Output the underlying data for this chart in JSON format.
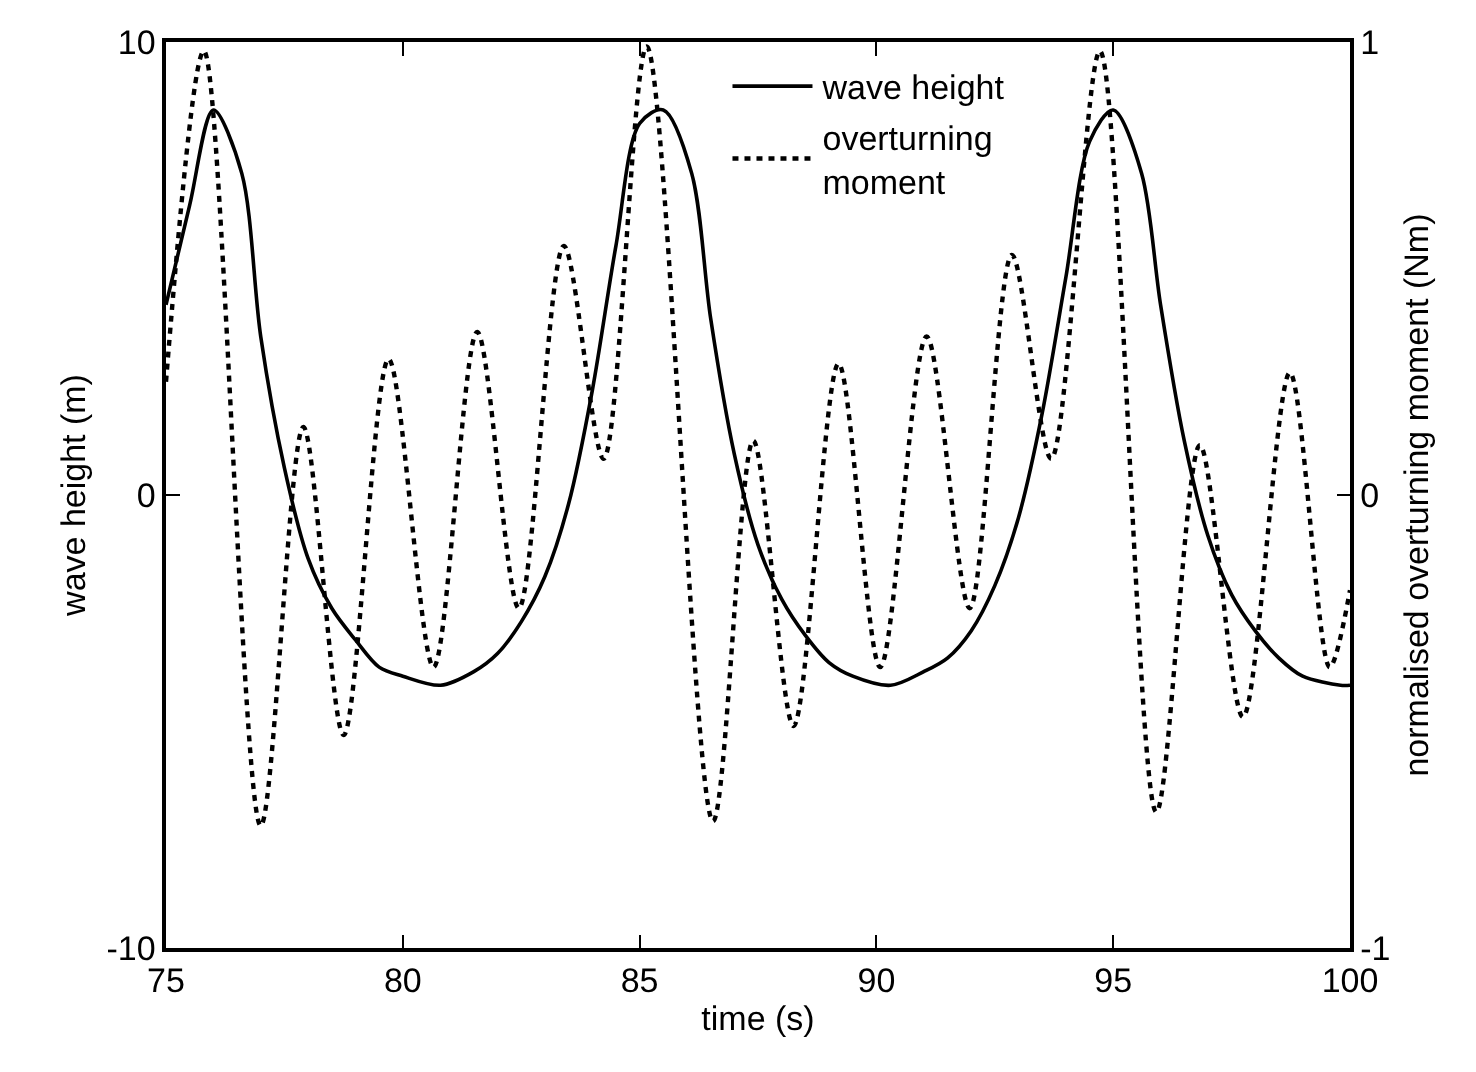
{
  "chart_data": {
    "type": "line",
    "xlabel": "time (s)",
    "ylabel": "wave height (m)",
    "y2label": "normalised overturning moment (Nm)",
    "xlim": [
      75,
      100
    ],
    "xticks": [
      75,
      80,
      85,
      90,
      95,
      100
    ],
    "ylim": [
      -10,
      10
    ],
    "yticks": [
      -10,
      0,
      10
    ],
    "y2lim": [
      -1,
      1
    ],
    "y2ticks": [
      -1,
      0,
      1
    ],
    "legend": "top right",
    "marker": "none",
    "series": [
      {
        "name": "wave height",
        "color": "#000000",
        "line_style": "solid",
        "x": [
          75,
          75.5,
          76,
          76.6,
          77,
          77.5,
          78,
          78.5,
          79,
          79.5,
          80,
          80.8,
          81.5,
          82,
          82.5,
          83,
          83.5,
          84,
          84.5,
          85,
          85.5,
          86.1,
          86.5,
          87,
          87.5,
          88,
          88.5,
          89,
          89.5,
          90.3,
          91,
          91.5,
          92,
          92.5,
          93,
          93.5,
          94,
          94.5,
          95,
          95.6,
          96,
          96.5,
          97,
          97.5,
          98,
          98.5,
          99,
          99.8,
          100
        ],
        "values": [
          4.2,
          6.4,
          8.5,
          7.1,
          3.5,
          0.6,
          -1.4,
          -2.5,
          -3.2,
          -3.8,
          -4.0,
          -4.2,
          -3.9,
          -3.5,
          -2.8,
          -1.8,
          -0.2,
          2.3,
          5.5,
          8.2,
          8.5,
          7.1,
          3.9,
          0.9,
          -1.1,
          -2.3,
          -3.1,
          -3.7,
          -4.0,
          -4.2,
          -3.9,
          -3.6,
          -3.0,
          -2.0,
          -0.5,
          1.8,
          4.8,
          7.8,
          8.5,
          7.1,
          4.2,
          1.2,
          -0.9,
          -2.2,
          -3.0,
          -3.6,
          -4.0,
          -4.2,
          -4.2
        ]
      },
      {
        "name": "overturning moment",
        "color": "#000000",
        "line_style": "dotted",
        "axis": "y2",
        "x": [
          75,
          75.8,
          77.0,
          77.9,
          78.75,
          79.7,
          80.65,
          81.57,
          82.45,
          83.4,
          84.24,
          85.15,
          86.55,
          87.4,
          88.25,
          89.2,
          90.08,
          91.06,
          91.97,
          92.86,
          93.69,
          94.72,
          95.91,
          96.83,
          97.74,
          98.73,
          99.57,
          100
        ],
        "values": [
          0.25,
          0.98,
          -0.73,
          0.15,
          -0.53,
          0.3,
          -0.38,
          0.36,
          -0.25,
          0.55,
          0.08,
          0.99,
          -0.72,
          0.12,
          -0.51,
          0.29,
          -0.38,
          0.35,
          -0.25,
          0.53,
          0.08,
          0.98,
          -0.7,
          0.11,
          -0.49,
          0.27,
          -0.38,
          -0.21
        ]
      }
    ]
  }
}
